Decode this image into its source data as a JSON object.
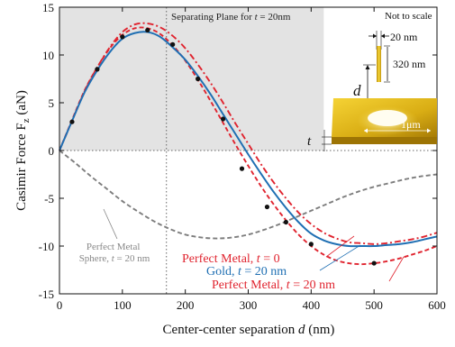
{
  "chart_data": {
    "type": "line",
    "xlabel": "Center-center separation d (nm)",
    "ylabel": "Casimir Force F_z (aN)",
    "xlim": [
      0,
      600
    ],
    "ylim": [
      -15,
      15
    ],
    "x_ticks": [
      0,
      100,
      200,
      300,
      400,
      500,
      600
    ],
    "y_ticks": [
      15,
      10,
      5,
      0,
      -5,
      -10,
      -15
    ],
    "grid": false,
    "shaded_region": {
      "x": [
        0,
        420
      ],
      "y": [
        0,
        15
      ],
      "color": "#e3e3e3"
    },
    "reference_lines": [
      {
        "orientation": "horizontal",
        "value": 0,
        "style": "dotted"
      },
      {
        "orientation": "vertical",
        "value": 170,
        "style": "dotted",
        "label": "Separating Plane for t = 20nm"
      }
    ],
    "series": [
      {
        "name": "Gold, t = 20 nm",
        "style": "solid",
        "color": "#1f6fb3",
        "x": [
          0,
          20,
          40,
          60,
          80,
          100,
          120,
          140,
          160,
          180,
          200,
          220,
          240,
          260,
          280,
          300,
          320,
          340,
          360,
          380,
          400,
          420,
          440,
          460,
          480,
          500,
          520,
          540,
          560,
          580,
          600
        ],
        "y": [
          0,
          3.1,
          6.1,
          8.4,
          10.3,
          11.7,
          12.3,
          12.4,
          11.9,
          10.8,
          9.5,
          7.8,
          5.9,
          3.8,
          1.7,
          -0.4,
          -2.4,
          -4.3,
          -6.0,
          -7.5,
          -8.7,
          -9.4,
          -9.8,
          -10.0,
          -10.0,
          -10.0,
          -9.9,
          -9.8,
          -9.6,
          -9.3,
          -9.0
        ]
      },
      {
        "name": "Perfect Metal, t = 0",
        "style": "dash-dot",
        "color": "#e0242f",
        "x": [
          0,
          20,
          40,
          60,
          80,
          100,
          120,
          140,
          160,
          180,
          200,
          220,
          240,
          260,
          280,
          300,
          320,
          340,
          360,
          380,
          400,
          420,
          440,
          460,
          480,
          500,
          520,
          540,
          560,
          580,
          600
        ],
        "y": [
          0,
          3.1,
          6.2,
          8.7,
          10.8,
          12.4,
          13.2,
          13.3,
          12.9,
          12.0,
          10.7,
          9.0,
          7.1,
          5.0,
          2.8,
          0.7,
          -1.4,
          -3.3,
          -5.0,
          -6.5,
          -7.7,
          -8.6,
          -9.2,
          -9.6,
          -9.7,
          -9.8,
          -9.7,
          -9.5,
          -9.3,
          -9.0,
          -8.6
        ]
      },
      {
        "name": "Perfect Metal, t = 20 nm",
        "style": "dashed",
        "color": "#e0242f",
        "x": [
          0,
          20,
          40,
          60,
          80,
          100,
          120,
          140,
          160,
          180,
          200,
          220,
          240,
          260,
          280,
          300,
          320,
          340,
          360,
          380,
          400,
          420,
          440,
          460,
          480,
          500,
          520,
          540,
          560,
          580,
          600
        ],
        "y": [
          0,
          3.2,
          6.3,
          8.7,
          10.7,
          12.1,
          12.8,
          12.8,
          12.2,
          11.0,
          9.4,
          7.4,
          5.2,
          2.9,
          0.6,
          -1.6,
          -3.7,
          -5.6,
          -7.3,
          -8.8,
          -10.0,
          -10.9,
          -11.5,
          -11.8,
          -11.9,
          -11.8,
          -11.6,
          -11.3,
          -10.9,
          -10.5,
          -10.0
        ]
      },
      {
        "name": "Perfect Metal Sphere, t = 20 nm",
        "style": "dashed",
        "color": "#7d7d7d",
        "x": [
          0,
          25,
          50,
          75,
          100,
          125,
          150,
          175,
          200,
          225,
          250,
          275,
          300,
          325,
          350,
          375,
          400,
          425,
          450,
          475,
          500,
          525,
          550,
          575,
          600
        ],
        "y": [
          0,
          -1.3,
          -2.7,
          -4.0,
          -5.3,
          -6.4,
          -7.4,
          -8.2,
          -8.8,
          -9.1,
          -9.2,
          -9.1,
          -8.8,
          -8.3,
          -7.7,
          -7.0,
          -6.3,
          -5.6,
          -4.9,
          -4.3,
          -3.8,
          -3.4,
          -3.0,
          -2.7,
          -2.5
        ]
      }
    ],
    "points": {
      "color": "#111111",
      "x": [
        20,
        60,
        100,
        140,
        180,
        220,
        260,
        290,
        330,
        360,
        400,
        500
      ],
      "y": [
        3.0,
        8.5,
        11.9,
        12.6,
        11.1,
        7.5,
        3.3,
        -1.9,
        -5.9,
        -7.5,
        -9.8,
        -11.8
      ]
    },
    "annotations": [
      {
        "id": "plane",
        "text": "Separating Plane for t = 20nm"
      },
      {
        "id": "sphere",
        "lines": [
          "Perfect Metal",
          "Sphere, t = 20 nm"
        ]
      },
      {
        "id": "pm0",
        "text": "Perfect Metal, t = 0"
      },
      {
        "id": "gold",
        "text": "Gold, t = 20 nm"
      },
      {
        "id": "pm20",
        "text": "Perfect Metal, t = 20 nm"
      }
    ],
    "inset": {
      "not_to_scale": "Not to scale",
      "width_label": "20 nm",
      "height_label": "320 nm",
      "separation_label": "d",
      "hole_label": "1μm",
      "thickness_label": "t"
    }
  }
}
